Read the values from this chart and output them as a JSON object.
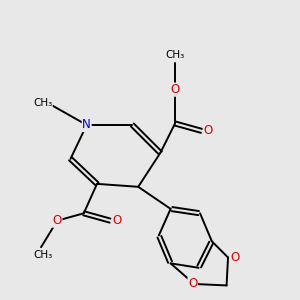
{
  "background_color": "#e8e8e8",
  "bond_color": "#000000",
  "atom_colors": {
    "N": "#0000cc",
    "O": "#dd0000",
    "C": "#000000"
  },
  "bond_width": 1.4,
  "font_size_atom": 8.5,
  "figsize": [
    3.0,
    3.0
  ],
  "dpi": 100,
  "xlim": [
    0,
    10
  ],
  "ylim": [
    0,
    10
  ]
}
